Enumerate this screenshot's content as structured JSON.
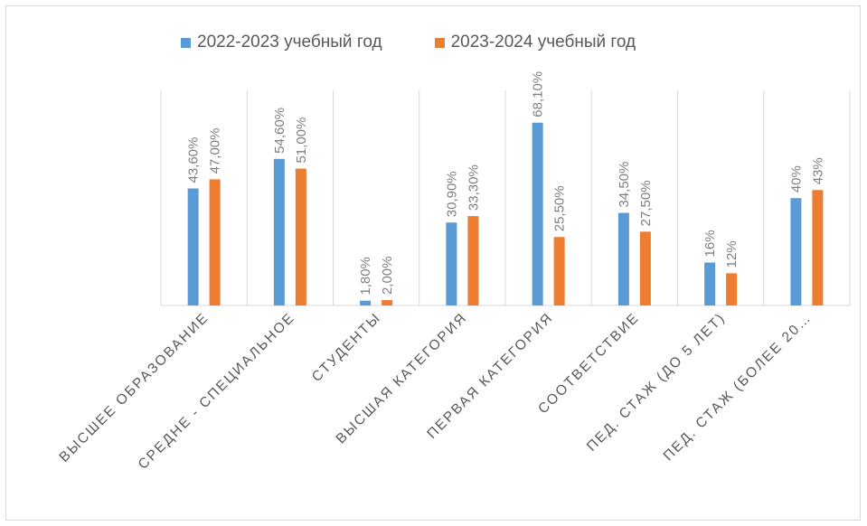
{
  "chart_data": {
    "type": "bar",
    "title": "",
    "xlabel": "",
    "ylabel": "",
    "ylim": [
      0,
      75
    ],
    "grid": "vertical separators between categories",
    "legend_position": "top",
    "categories": [
      "ВЫСШЕЕ ОБРАЗОВАНИЕ",
      "СРЕДНЕ - СПЕЦИАЛЬНОЕ",
      "СТУДЕНТЫ",
      "ВЫСШАЯ КАТЕГОРИЯ",
      "ПЕРВАЯ КАТЕГОРИЯ",
      "СООТВЕТСТВИЕ",
      "ПЕД. СТАЖ (ДО 5 ЛЕТ)",
      "ПЕД. СТАЖ (БОЛЕЕ 20…"
    ],
    "series": [
      {
        "name": "2022-2023 учебный год",
        "color": "#5b9bd5",
        "values": [
          43.6,
          54.6,
          1.8,
          30.9,
          68.1,
          34.5,
          16,
          40
        ],
        "labels": [
          "43,60%",
          "54,60%",
          "1,80%",
          "30,90%",
          "68,10%",
          "34,50%",
          "16%",
          "40%"
        ]
      },
      {
        "name": "2023-2024 учебный год",
        "color": "#ed7d31",
        "values": [
          47.0,
          51.0,
          2.0,
          33.3,
          25.5,
          27.5,
          12,
          43
        ],
        "labels": [
          "47,00%",
          "51,00%",
          "2,00%",
          "33,30%",
          "25,50%",
          "27,50%",
          "12%",
          "43%"
        ]
      }
    ]
  }
}
